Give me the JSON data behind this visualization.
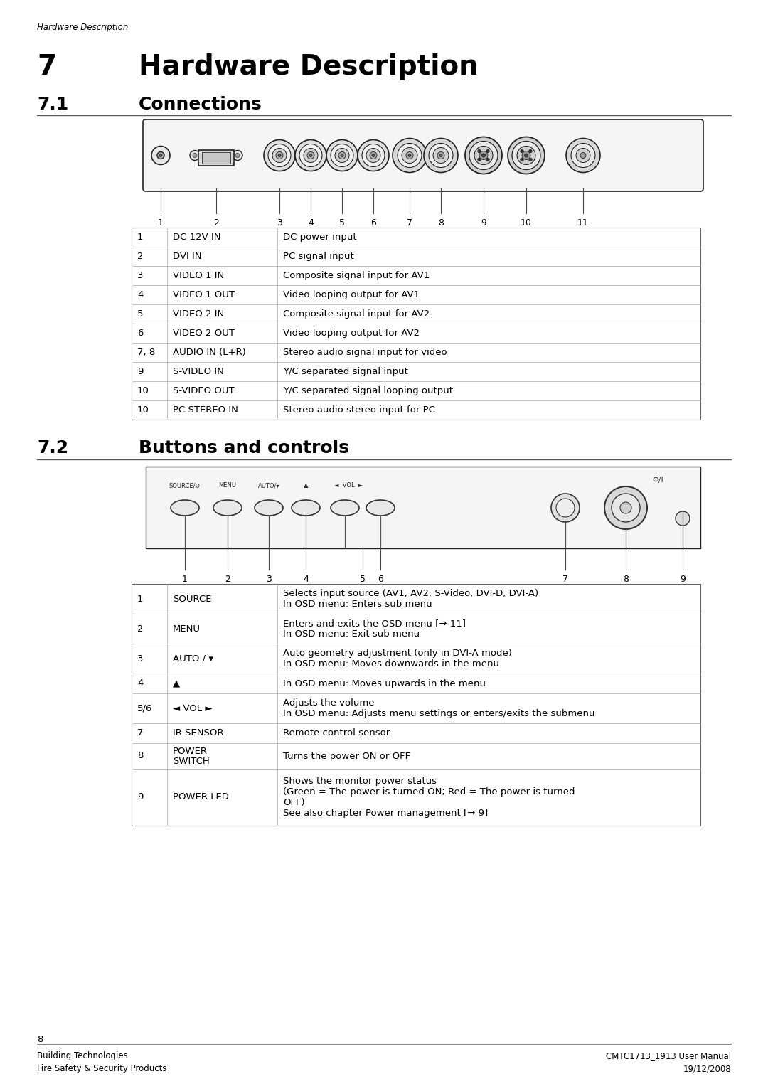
{
  "page_header": "Hardware Description",
  "chapter_number": "7",
  "chapter_title": "Hardware Description",
  "section1_number": "7.1",
  "section1_title": "Connections",
  "section2_number": "7.2",
  "section2_title": "Buttons and controls",
  "connections_table": [
    [
      "1",
      "DC 12V IN",
      "DC power input"
    ],
    [
      "2",
      "DVI IN",
      "PC signal input"
    ],
    [
      "3",
      "VIDEO 1 IN",
      "Composite signal input for AV1"
    ],
    [
      "4",
      "VIDEO 1 OUT",
      "Video looping output for AV1"
    ],
    [
      "5",
      "VIDEO 2 IN",
      "Composite signal input for AV2"
    ],
    [
      "6",
      "VIDEO 2 OUT",
      "Video looping output for AV2"
    ],
    [
      "7, 8",
      "AUDIO IN (L+R)",
      "Stereo audio signal input for video"
    ],
    [
      "9",
      "S-VIDEO IN",
      "Y/C separated signal input"
    ],
    [
      "10",
      "S-VIDEO OUT",
      "Y/C separated signal looping output"
    ],
    [
      "10",
      "PC STEREO IN",
      "Stereo audio stereo input for PC"
    ]
  ],
  "buttons_table": [
    [
      "1",
      "SOURCE",
      "Selects input source (AV1, AV2, S-Video, DVI-D, DVI-A)\nIn OSD menu: Enters sub menu"
    ],
    [
      "2",
      "MENU",
      "Enters and exits the OSD menu [→ 11]\nIn OSD menu: Exit sub menu"
    ],
    [
      "3",
      "AUTO / ▾",
      "Auto geometry adjustment (only in DVI-A mode)\nIn OSD menu: Moves downwards in the menu"
    ],
    [
      "4",
      "▲",
      "In OSD menu: Moves upwards in the menu"
    ],
    [
      "5/6",
      "◄ VOL ►",
      "Adjusts the volume\nIn OSD menu: Adjusts menu settings or enters/exits the submenu"
    ],
    [
      "7",
      "IR SENSOR",
      "Remote control sensor"
    ],
    [
      "8",
      "POWER\nSWITCH",
      "Turns the power ON or OFF"
    ],
    [
      "9",
      "POWER LED",
      "Shows the monitor power status\n(Green = The power is turned ON; Red = The power is turned\nOFF)\nSee also chapter Power management [→ 9]"
    ]
  ],
  "footer_left1": "Building Technologies",
  "footer_left2": "Fire Safety & Security Products",
  "footer_right1": "CMTC1713_1913 User Manual",
  "footer_right2": "19/12/2008",
  "page_number": "8",
  "bg_color": "#ffffff",
  "text_color": "#000000"
}
